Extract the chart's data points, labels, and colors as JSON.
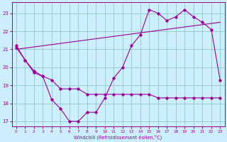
{
  "xlabel": "Windchill (Refroidissement éolien,°C)",
  "bg_color": "#cceeff",
  "grid_color": "#99cccc",
  "line_color": "#990099",
  "xlim": [
    -0.5,
    23.5
  ],
  "ylim": [
    16.7,
    23.6
  ],
  "yticks": [
    17,
    18,
    19,
    20,
    21,
    22,
    23
  ],
  "xticks": [
    0,
    1,
    2,
    3,
    4,
    5,
    6,
    7,
    8,
    9,
    10,
    11,
    12,
    13,
    14,
    15,
    16,
    17,
    18,
    19,
    20,
    21,
    22,
    23
  ],
  "line1_x": [
    0,
    1,
    2,
    3,
    4,
    5,
    6,
    7,
    8,
    9,
    10,
    11,
    12,
    13,
    14,
    15,
    16,
    17,
    18,
    19,
    20,
    21,
    22,
    23
  ],
  "line1_y": [
    21.2,
    20.4,
    19.8,
    19.5,
    18.2,
    17.7,
    17.0,
    17.0,
    17.5,
    17.5,
    18.3,
    19.4,
    20.0,
    21.2,
    21.8,
    23.2,
    23.0,
    22.6,
    22.8,
    23.2,
    22.8,
    22.5,
    22.1,
    19.3
  ],
  "line2_x": [
    0,
    1,
    2,
    3,
    4,
    5,
    6,
    7,
    8,
    9,
    10,
    11,
    12,
    13,
    14,
    15,
    16,
    17,
    18,
    19,
    20,
    21,
    22,
    23
  ],
  "line2_y": [
    21.1,
    20.4,
    19.7,
    19.5,
    19.3,
    18.8,
    18.8,
    18.8,
    18.5,
    18.5,
    18.5,
    18.5,
    18.5,
    18.5,
    18.5,
    18.5,
    18.3,
    18.3,
    18.3,
    18.3,
    18.3,
    18.3,
    18.3,
    18.3
  ],
  "line3_x": [
    0,
    23
  ],
  "line3_y": [
    21.0,
    22.5
  ]
}
